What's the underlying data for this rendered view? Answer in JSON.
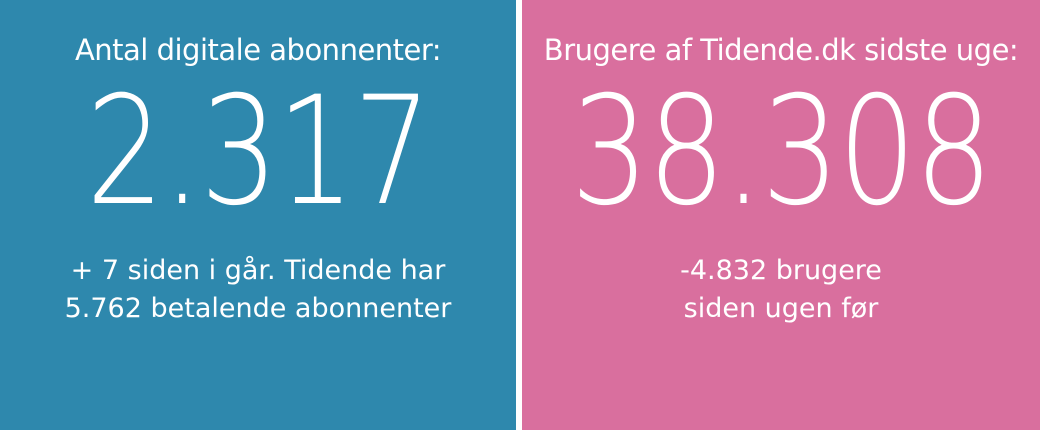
{
  "left_panel": {
    "label": "Antal digitale abonnenter:",
    "value": "2.317",
    "detail_line1": "+ 7 siden i går. Tidende har",
    "detail_line2": "5.762 betalende abonnenter",
    "background": "#2e88ad"
  },
  "right_panel": {
    "label": "Brugere af Tidende.dk sidste uge:",
    "value": "38.308",
    "detail_line1": "-4.832 brugere",
    "detail_line2": "siden ugen før",
    "background": "#d96f9e"
  }
}
